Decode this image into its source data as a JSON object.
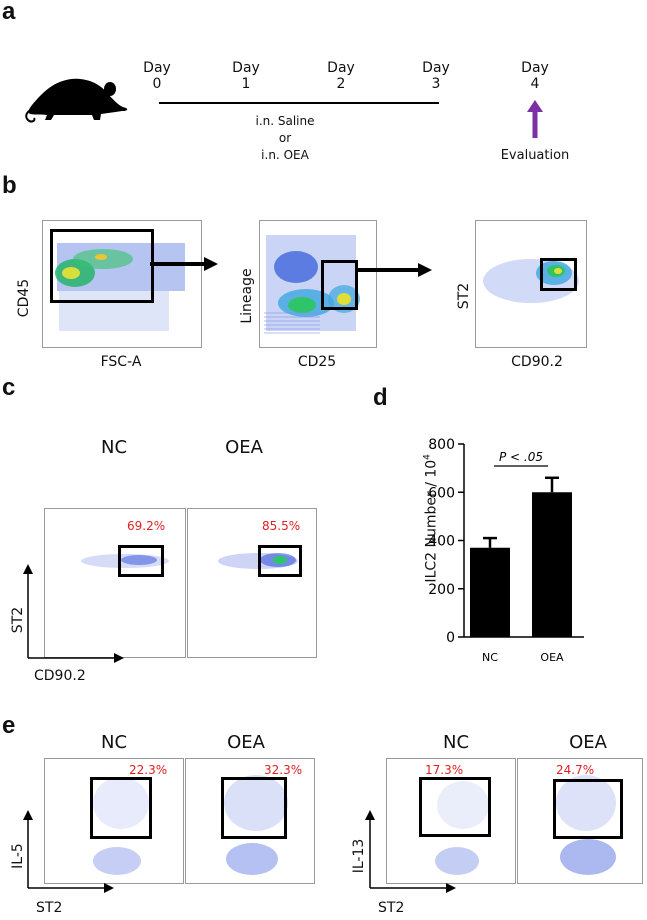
{
  "panels": {
    "a": "a",
    "b": "b",
    "c": "c",
    "d": "d",
    "e": "e"
  },
  "timeline": {
    "days": [
      {
        "word": "Day",
        "num": "0"
      },
      {
        "word": "Day",
        "num": "1"
      },
      {
        "word": "Day",
        "num": "2"
      },
      {
        "word": "Day",
        "num": "3"
      },
      {
        "word": "Day",
        "num": "4"
      }
    ],
    "treatment": [
      "i.n. Saline",
      "or",
      "i.n. OEA"
    ],
    "evaluation": "Evaluation",
    "arrow_color": "#7d2fa6"
  },
  "gating": {
    "plots": [
      {
        "xlabel": "FSC-A",
        "ylabel": "CD45"
      },
      {
        "xlabel": "CD25",
        "ylabel": "Lineage"
      },
      {
        "xlabel": "CD90.2",
        "ylabel": "ST2"
      }
    ]
  },
  "panel_c": {
    "groups": [
      {
        "name": "NC",
        "percent": "69.2%"
      },
      {
        "name": "OEA",
        "percent": "85.5%"
      }
    ],
    "ylabel": "ST2",
    "xlabel": "CD90.2"
  },
  "panel_e": {
    "left": {
      "ylabel": "IL-5",
      "xlabel": "ST2",
      "groups": [
        {
          "name": "NC",
          "percent": "22.3%"
        },
        {
          "name": "OEA",
          "percent": "32.3%"
        }
      ]
    },
    "right": {
      "ylabel": "IL-13",
      "xlabel": "ST2",
      "groups": [
        {
          "name": "NC",
          "percent": "17.3%"
        },
        {
          "name": "OEA",
          "percent": "24.7%"
        }
      ]
    }
  },
  "colors": {
    "percent_red": "#e02020",
    "dot_blue": "#1a3dd6",
    "bar_black": "#000000"
  },
  "chart_data": {
    "type": "bar",
    "categories": [
      "NC",
      "OEA"
    ],
    "values": [
      370,
      600
    ],
    "errors": [
      40,
      60
    ],
    "ylabel": "ILC2 Number / 10",
    "ylabel_sup": "4",
    "ylim": [
      0,
      800
    ],
    "yticks": [
      "0",
      "200",
      "400",
      "600",
      "800"
    ],
    "annotation": "P < .05",
    "grid": false
  }
}
